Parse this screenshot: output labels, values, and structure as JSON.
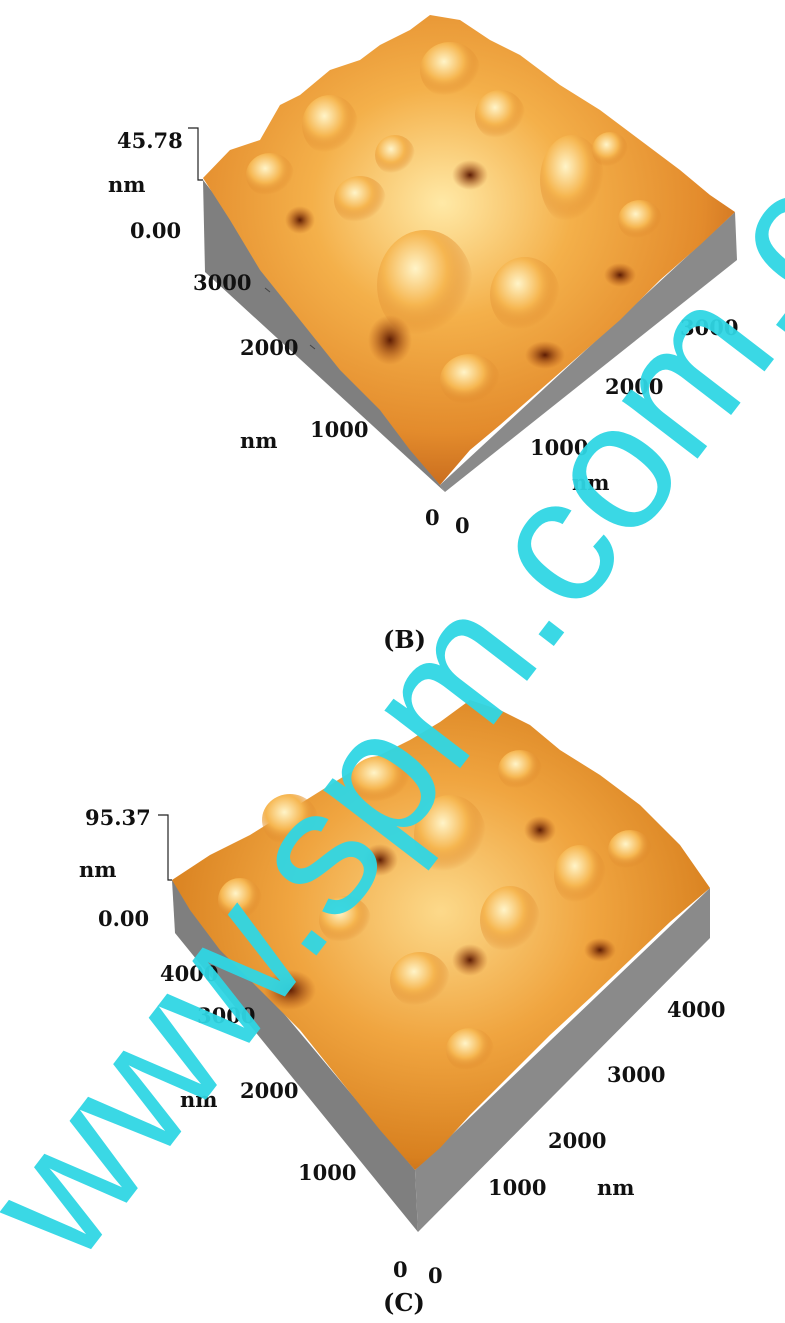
{
  "colors": {
    "surface_light": "#ffe9a6",
    "surface_mid": "#e38b2c",
    "surface_dark": "#7a2a08",
    "side_wall": "#7f7f7f",
    "watermark": "#2fd6e4"
  },
  "panels": [
    {
      "z_max": "45.78",
      "z_unit": "nm",
      "z_min": "0.00",
      "y_ticks": [
        "3000",
        "2000",
        "1000"
      ],
      "y_unit": "nm",
      "origin_left": "0",
      "origin_right": "0",
      "x_ticks": [
        "1000",
        "2000",
        "3000"
      ],
      "x_unit": "nm",
      "caption": "(B)"
    },
    {
      "z_max": "95.37",
      "z_unit": "nm",
      "z_min": "0.00",
      "y_ticks": [
        "4000",
        "3000",
        "2000",
        "1000"
      ],
      "y_unit": "nm",
      "origin_left": "0",
      "origin_right": "0",
      "x_ticks": [
        "1000",
        "2000",
        "3000",
        "4000"
      ],
      "x_unit": "nm",
      "caption": "(C)"
    }
  ],
  "watermark_text": "www.spm.com.cn"
}
